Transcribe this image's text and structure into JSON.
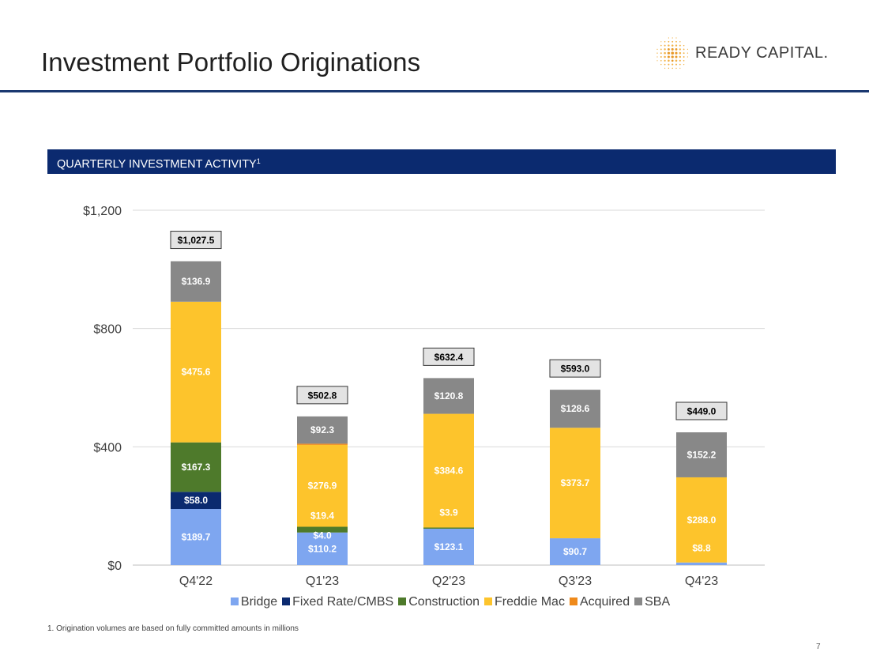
{
  "header": {
    "title": "Investment Portfolio Originations",
    "logo_text": "READY CAPITAL."
  },
  "section": {
    "label": "QUARTERLY INVESTMENT ACTIVITY",
    "footnote_marker": "1"
  },
  "chart_data": {
    "type": "bar",
    "stacked": true,
    "categories": [
      "Q4'22",
      "Q1'23",
      "Q2'23",
      "Q3'23",
      "Q4'23"
    ],
    "ylim": [
      0,
      1200
    ],
    "yticks": [
      0,
      400,
      800,
      1200
    ],
    "ytick_labels": [
      "$0",
      "$400",
      "$800",
      "$1,200"
    ],
    "grid": true,
    "legend_position": "bottom",
    "series": [
      {
        "name": "Bridge",
        "color": "#7ea6f0",
        "values": [
          189.7,
          110.2,
          123.1,
          90.7,
          8.8
        ],
        "labels": [
          "$189.7",
          "$110.2",
          "$123.1",
          "$90.7",
          ""
        ]
      },
      {
        "name": "Fixed Rate/CMBS",
        "color": "#0b2a6f",
        "values": [
          58.0,
          0,
          0,
          0,
          0
        ],
        "labels": [
          "$58.0",
          "",
          "",
          "",
          ""
        ]
      },
      {
        "name": "Construction",
        "color": "#4e7a2b",
        "values": [
          167.3,
          19.4,
          3.9,
          0,
          0
        ],
        "labels": [
          "$167.3",
          "",
          "",
          "",
          ""
        ]
      },
      {
        "name": "Freddie Mac",
        "color": "#fdc42c",
        "values": [
          475.6,
          276.9,
          384.6,
          373.7,
          288.0
        ],
        "labels": [
          "$475.6",
          "$276.9",
          "$384.6",
          "$373.7",
          "$288.0"
        ]
      },
      {
        "name": "Acquired",
        "color": "#ef8a1b",
        "values": [
          0,
          4.0,
          0,
          0,
          0
        ],
        "labels": [
          "",
          "",
          "",
          "",
          ""
        ]
      },
      {
        "name": "SBA",
        "color": "#888888",
        "values": [
          136.9,
          92.3,
          120.8,
          128.6,
          152.2
        ],
        "labels": [
          "$136.9",
          "$92.3",
          "$120.8",
          "$128.6",
          "$152.2"
        ]
      }
    ],
    "extra_labels": [
      {
        "category_index": 1,
        "text": "$19.4"
      },
      {
        "category_index": 1,
        "text": "$4.0"
      },
      {
        "category_index": 2,
        "text": "$3.9"
      },
      {
        "category_index": 4,
        "text": "$8.8"
      }
    ],
    "totals": [
      "$1,027.5",
      "$502.8",
      "$632.4",
      "$593.0",
      "$449.0"
    ]
  },
  "footnote": "1.    Origination volumes are based on fully committed amounts in millions",
  "page_number": "7"
}
